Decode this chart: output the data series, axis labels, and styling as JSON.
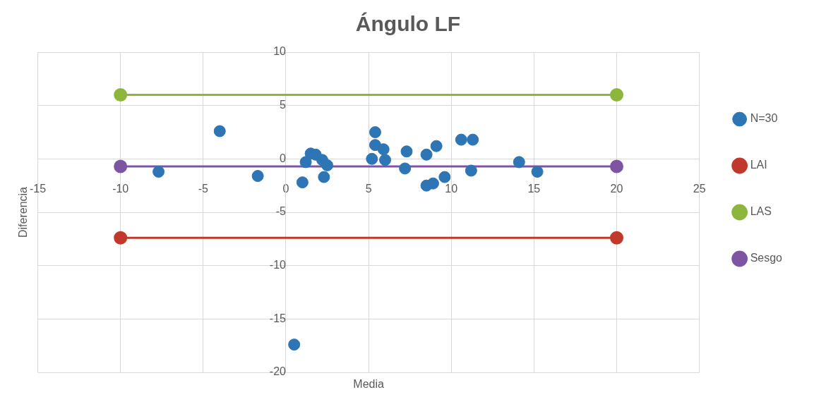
{
  "chart_data": {
    "type": "scatter",
    "title": "Ángulo LF",
    "xlabel": "Media",
    "ylabel": "Diferencia",
    "xlim": [
      -15,
      25
    ],
    "xticks": [
      -15,
      -10,
      -5,
      0,
      5,
      10,
      15,
      20,
      25
    ],
    "ylim": [
      -20,
      10
    ],
    "yticks": [
      -20,
      -15,
      -10,
      -5,
      0,
      5,
      10
    ],
    "grid": true,
    "legend": "right",
    "marker": "circle",
    "series": [
      {
        "name": "N=30",
        "color": "#2e75b6",
        "x": [
          -4.0,
          -7.7,
          -1.7,
          1.0,
          1.2,
          1.5,
          1.8,
          2.2,
          2.5,
          2.3,
          5.4,
          5.4,
          5.9,
          5.2,
          6.0,
          7.3,
          7.2,
          8.5,
          9.1,
          8.5,
          8.9,
          9.6,
          10.6,
          11.3,
          11.2,
          14.1,
          15.2,
          0.5
        ],
        "values": [
          2.6,
          -1.2,
          -1.6,
          -2.2,
          -0.3,
          0.5,
          0.4,
          -0.1,
          -0.6,
          -1.7,
          2.5,
          1.3,
          0.9,
          0,
          -0.1,
          0.7,
          -0.9,
          0.4,
          1.2,
          -2.5,
          -2.3,
          -1.7,
          1.8,
          1.8,
          -1.1,
          -0.3,
          -1.2,
          -17.4
        ]
      },
      {
        "name": "LAI",
        "color": "#c0392b",
        "type": "line",
        "x": [
          -10,
          20
        ],
        "values": [
          -7.4,
          -7.4
        ]
      },
      {
        "name": "LAS",
        "color": "#8cb63c",
        "type": "line",
        "x": [
          -10,
          20
        ],
        "values": [
          6.0,
          6.0
        ]
      },
      {
        "name": "Sesgo",
        "color": "#7d55a3",
        "type": "line",
        "x": [
          -10,
          20
        ],
        "values": [
          -0.7,
          -0.7
        ]
      }
    ]
  }
}
